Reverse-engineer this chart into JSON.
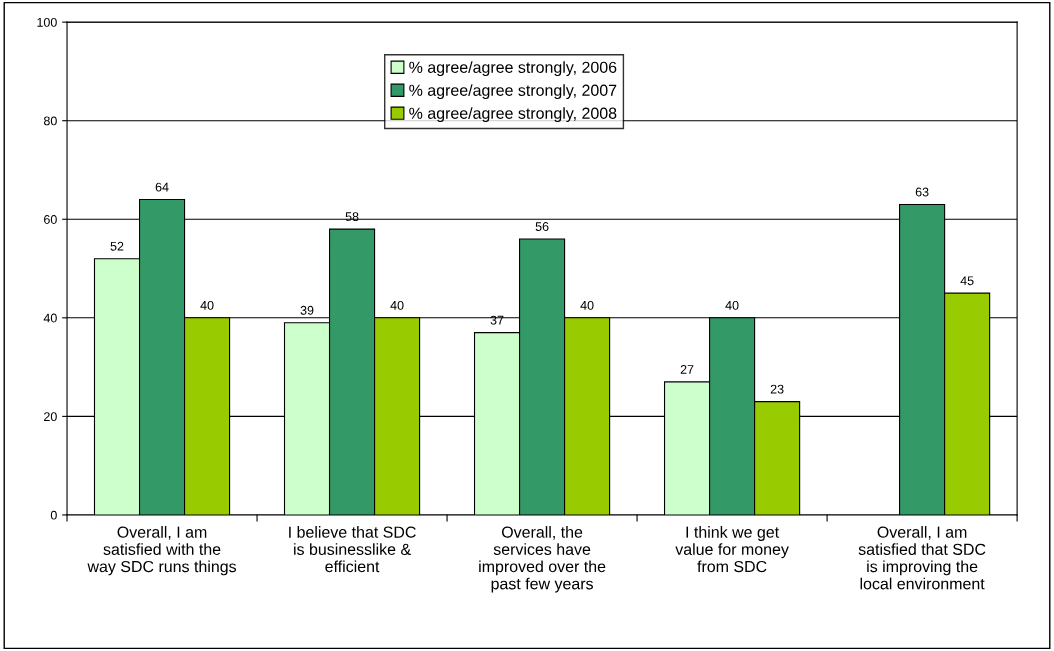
{
  "chart_data": {
    "type": "bar",
    "categories": [
      "Overall, I am satisfied with the way SDC runs things",
      "I believe that SDC is businesslike & efficient",
      "Overall, the services have improved over the past few years",
      "I think we get value for money from SDC",
      "Overall, I am satisfied that SDC is improving the local environment"
    ],
    "series": [
      {
        "name": "% agree/agree strongly, 2006",
        "color": "#ccffcc",
        "values": [
          52,
          39,
          37,
          27,
          null
        ]
      },
      {
        "name": "% agree/agree strongly, 2007",
        "color": "#339966",
        "values": [
          64,
          58,
          56,
          40,
          63
        ]
      },
      {
        "name": "% agree/agree strongly, 2008",
        "color": "#99cc00",
        "values": [
          40,
          40,
          40,
          23,
          45
        ]
      }
    ],
    "ylim": [
      0,
      100
    ],
    "yticks": [
      0,
      20,
      40,
      60,
      80,
      100
    ],
    "grid": "y",
    "legend": "top",
    "data_labels": true
  }
}
